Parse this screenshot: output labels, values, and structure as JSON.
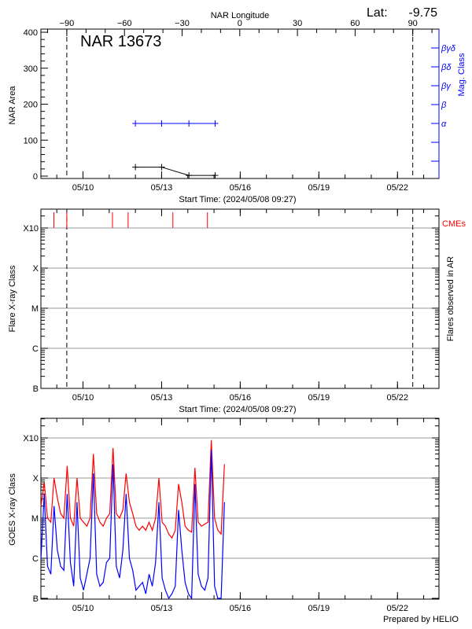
{
  "header": {
    "lat_label": "Lat:",
    "lat_value": "-9.75"
  },
  "chart_data": [
    {
      "type": "line",
      "title": "NAR 13673",
      "start_time": "2024/05/08 09:27",
      "xlabel": "Start Time: (2024/05/08 09:27)",
      "ylabel": "NAR Area",
      "y2label": "Mag. Class",
      "xlim": [
        "05/08 09:27",
        "05/23 14:00"
      ],
      "xticks": [
        "05/10",
        "05/13",
        "05/16",
        "05/19",
        "05/22"
      ],
      "ylim": [
        0,
        400
      ],
      "yticks": [
        0,
        100,
        200,
        300,
        400
      ],
      "y2ticks": [
        "α",
        "β",
        "βγ",
        "βδ",
        "βγδ"
      ],
      "top_axis": {
        "label": "NAR Longitude",
        "ticks": [
          -90,
          -60,
          -30,
          0,
          30,
          60,
          90
        ],
        "range": [
          -90,
          90
        ]
      },
      "limb_times": [
        "05/09 09:10",
        "05/22 14:00"
      ],
      "area": {
        "color": "#000000",
        "times": [
          "05/12 00:00",
          "05/13 00:00",
          "05/14 01:00",
          "05/15 01:00"
        ],
        "values": [
          25,
          25,
          2,
          2
        ]
      },
      "mag_class": {
        "color": "#0000ff",
        "times": [
          "05/12 00:00",
          "05/13 00:00",
          "05/14 01:00",
          "05/15 01:00"
        ],
        "values": [
          "α",
          "α",
          "α",
          "α"
        ]
      },
      "grid": false
    },
    {
      "type": "scatter",
      "xlabel": "Start Time: (2024/05/08 09:27)",
      "ylabel": "Flare X-ray Class",
      "y2label": "Flares observed in AR",
      "xlim": [
        "05/08 09:27",
        "05/23 14:00"
      ],
      "xticks": [
        "05/10",
        "05/13",
        "05/16",
        "05/19",
        "05/22"
      ],
      "yticks": [
        "B",
        "C",
        "M",
        "X",
        "X10"
      ],
      "grid": true,
      "limb_times": [
        "05/09 09:10",
        "05/22 14:00"
      ],
      "flares": [],
      "cmes": {
        "label": "CMEs",
        "color": "#ff0000",
        "times": [
          "05/08 21:20",
          "05/09 09:10",
          "05/11 03:00",
          "05/11 17:20",
          "05/13 10:20",
          "05/14 18:00"
        ]
      }
    },
    {
      "type": "line",
      "ylabel": "GOES X-ray Class",
      "xlim": [
        "05/08 09:27",
        "05/23 14:00"
      ],
      "xticks": [
        "05/10",
        "05/13",
        "05/16",
        "05/19",
        "05/22"
      ],
      "yticks": [
        "B",
        "C",
        "M",
        "X",
        "X10"
      ],
      "grid": true,
      "times": [
        "05/08 09:30",
        "05/08 12:30",
        "05/08 15:30",
        "05/08 18:30",
        "05/08 21:30",
        "05/09 00:30",
        "05/09 03:30",
        "05/09 06:30",
        "05/09 09:30",
        "05/09 12:30",
        "05/09 15:30",
        "05/09 18:30",
        "05/09 21:30",
        "05/10 00:30",
        "05/10 03:30",
        "05/10 06:30",
        "05/10 09:30",
        "05/10 12:30",
        "05/10 15:30",
        "05/10 18:30",
        "05/10 21:30",
        "05/11 00:30",
        "05/11 03:30",
        "05/11 06:30",
        "05/11 09:30",
        "05/11 12:30",
        "05/11 15:30",
        "05/11 18:30",
        "05/11 21:30",
        "05/12 00:30",
        "05/12 03:30",
        "05/12 06:30",
        "05/12 09:30",
        "05/12 12:30",
        "05/12 15:30",
        "05/12 18:30",
        "05/12 21:30",
        "05/13 00:30",
        "05/13 03:30",
        "05/13 06:30",
        "05/13 09:30",
        "05/13 12:30",
        "05/13 15:30",
        "05/13 18:30",
        "05/13 21:30",
        "05/14 00:30",
        "05/14 03:30",
        "05/14 06:30",
        "05/14 09:30",
        "05/14 12:30",
        "05/14 15:30",
        "05/14 18:30",
        "05/14 21:30",
        "05/15 00:30",
        "05/15 03:30",
        "05/15 06:30",
        "05/15 09:30"
      ],
      "series": [
        {
          "color": "#ff0000",
          "values": [
            "M2.0",
            "M7.9",
            "M1.0",
            "C7.9",
            "X1.0",
            "M3.2",
            "M1.3",
            "M1.0",
            "X2.0",
            "M1.0",
            "C6.3",
            "X1.0",
            "M1.0",
            "C7.9",
            "C6.3",
            "M1.0",
            "X4.0",
            "M1.3",
            "C7.9",
            "C6.3",
            "M1.0",
            "M1.3",
            "X5.6",
            "M1.3",
            "M1.0",
            "M1.6",
            "X1.3",
            "M2.5",
            "M1.3",
            "C6.3",
            "C5.0",
            "C6.3",
            "C5.0",
            "C7.9",
            "C5.0",
            "M1.0",
            "X1.0",
            "C7.9",
            "C6.3",
            "C4.0",
            "C3.2",
            "C5.0",
            "M7.1",
            "M2.5",
            "C6.3",
            "C5.0",
            "C4.5",
            "X1.8",
            "C7.9",
            "C6.3",
            "C7.1",
            "C7.9",
            "X8.9",
            "M1.0",
            "C5.0",
            "C4.0",
            "X2.2"
          ]
        },
        {
          "color": "#0000ff",
          "values": [
            "C1.0",
            "M4.0",
            "B6.3",
            "B4.0",
            "M2.0",
            "C1.6",
            "B6.3",
            "B5.0",
            "M4.0",
            "B7.9",
            "B2.0",
            "M2.5",
            "B3.2",
            "B1.6",
            "B4.0",
            "C1.0",
            "X1.3",
            "B4.0",
            "B2.0",
            "B2.5",
            "B7.9",
            "C1.0",
            "X2.2",
            "B6.3",
            "B3.2",
            "C1.6",
            "M4.0",
            "C1.0",
            "B5.0",
            "B1.6",
            "B2.0",
            "B2.5",
            "B1.3",
            "B4.0",
            "B2.0",
            "B7.9",
            "M2.5",
            "B3.2",
            "B1.6",
            "B1.0",
            "B1.3",
            "B2.0",
            "M1.6",
            "C1.6",
            "B2.5",
            "B1.3",
            "B1.0",
            "M7.1",
            "B4.0",
            "B2.0",
            "B1.6",
            "B3.2",
            "X5.0",
            "B2.0",
            "B1.0",
            "B1.0",
            "M2.5"
          ]
        }
      ]
    }
  ],
  "footer": {
    "prepared_by": "Prepared by HELIO"
  }
}
